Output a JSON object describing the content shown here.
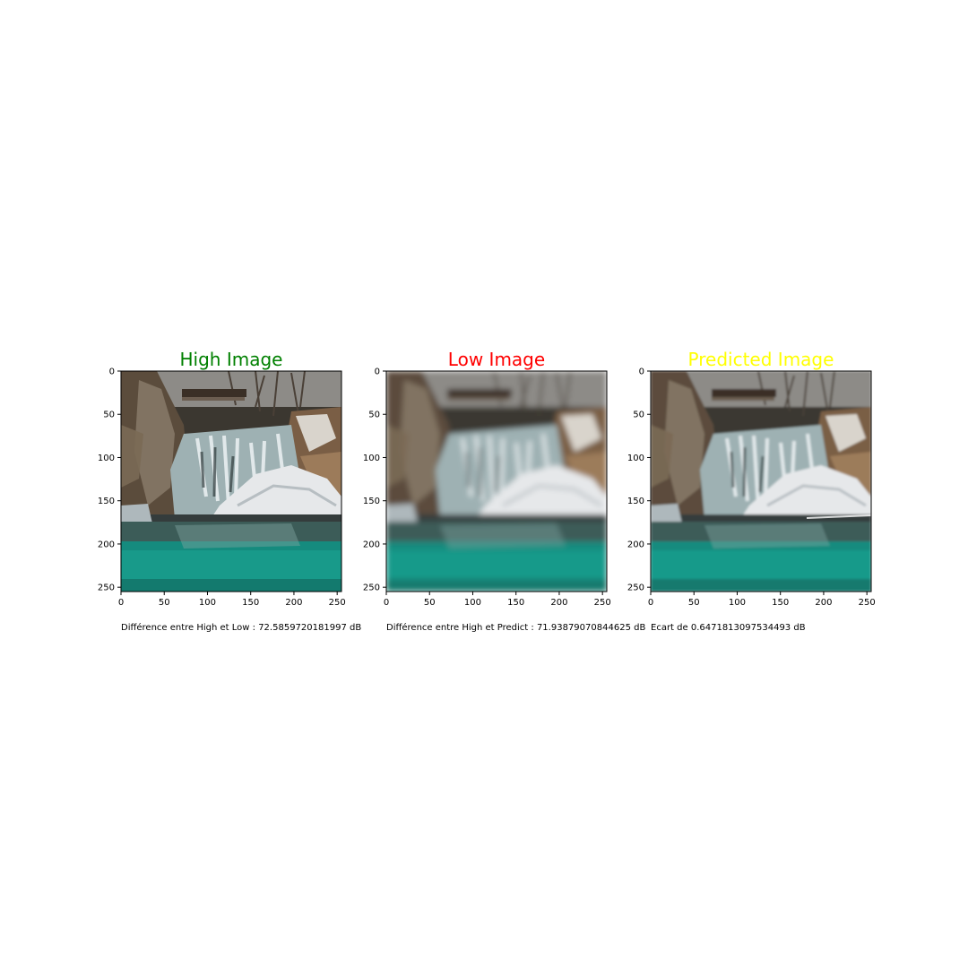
{
  "chart_data": [
    {
      "type": "image",
      "title": "High Image",
      "title_color": "#008000",
      "image": "sharp waterfall photo with ice and turquoise pool",
      "xticks": [
        0,
        50,
        100,
        150,
        200,
        250
      ],
      "yticks": [
        0,
        50,
        100,
        150,
        200,
        250
      ],
      "xlim": [
        0,
        255
      ],
      "ylim": [
        255,
        0
      ],
      "caption": "Différence entre High et Low : 72.5859720181997 dB"
    },
    {
      "type": "image",
      "title": "Low Image",
      "title_color": "#ff0000",
      "image": "blurred low-resolution version of the waterfall photo",
      "xticks": [
        0,
        50,
        100,
        150,
        200,
        250
      ],
      "yticks": [
        0,
        50,
        100,
        150,
        200,
        250
      ],
      "xlim": [
        0,
        255
      ],
      "ylim": [
        255,
        0
      ],
      "caption": "Différence entre High et Predict : 71.93879070844625 dB"
    },
    {
      "type": "image",
      "title": "Predicted Image",
      "title_color": "#ffff00",
      "image": "model-predicted upscaled waterfall photo",
      "xticks": [
        0,
        50,
        100,
        150,
        200,
        250
      ],
      "yticks": [
        0,
        50,
        100,
        150,
        200,
        250
      ],
      "xlim": [
        0,
        255
      ],
      "ylim": [
        255,
        0
      ],
      "caption": "Ecart de 0.6471813097534493 dB"
    }
  ]
}
